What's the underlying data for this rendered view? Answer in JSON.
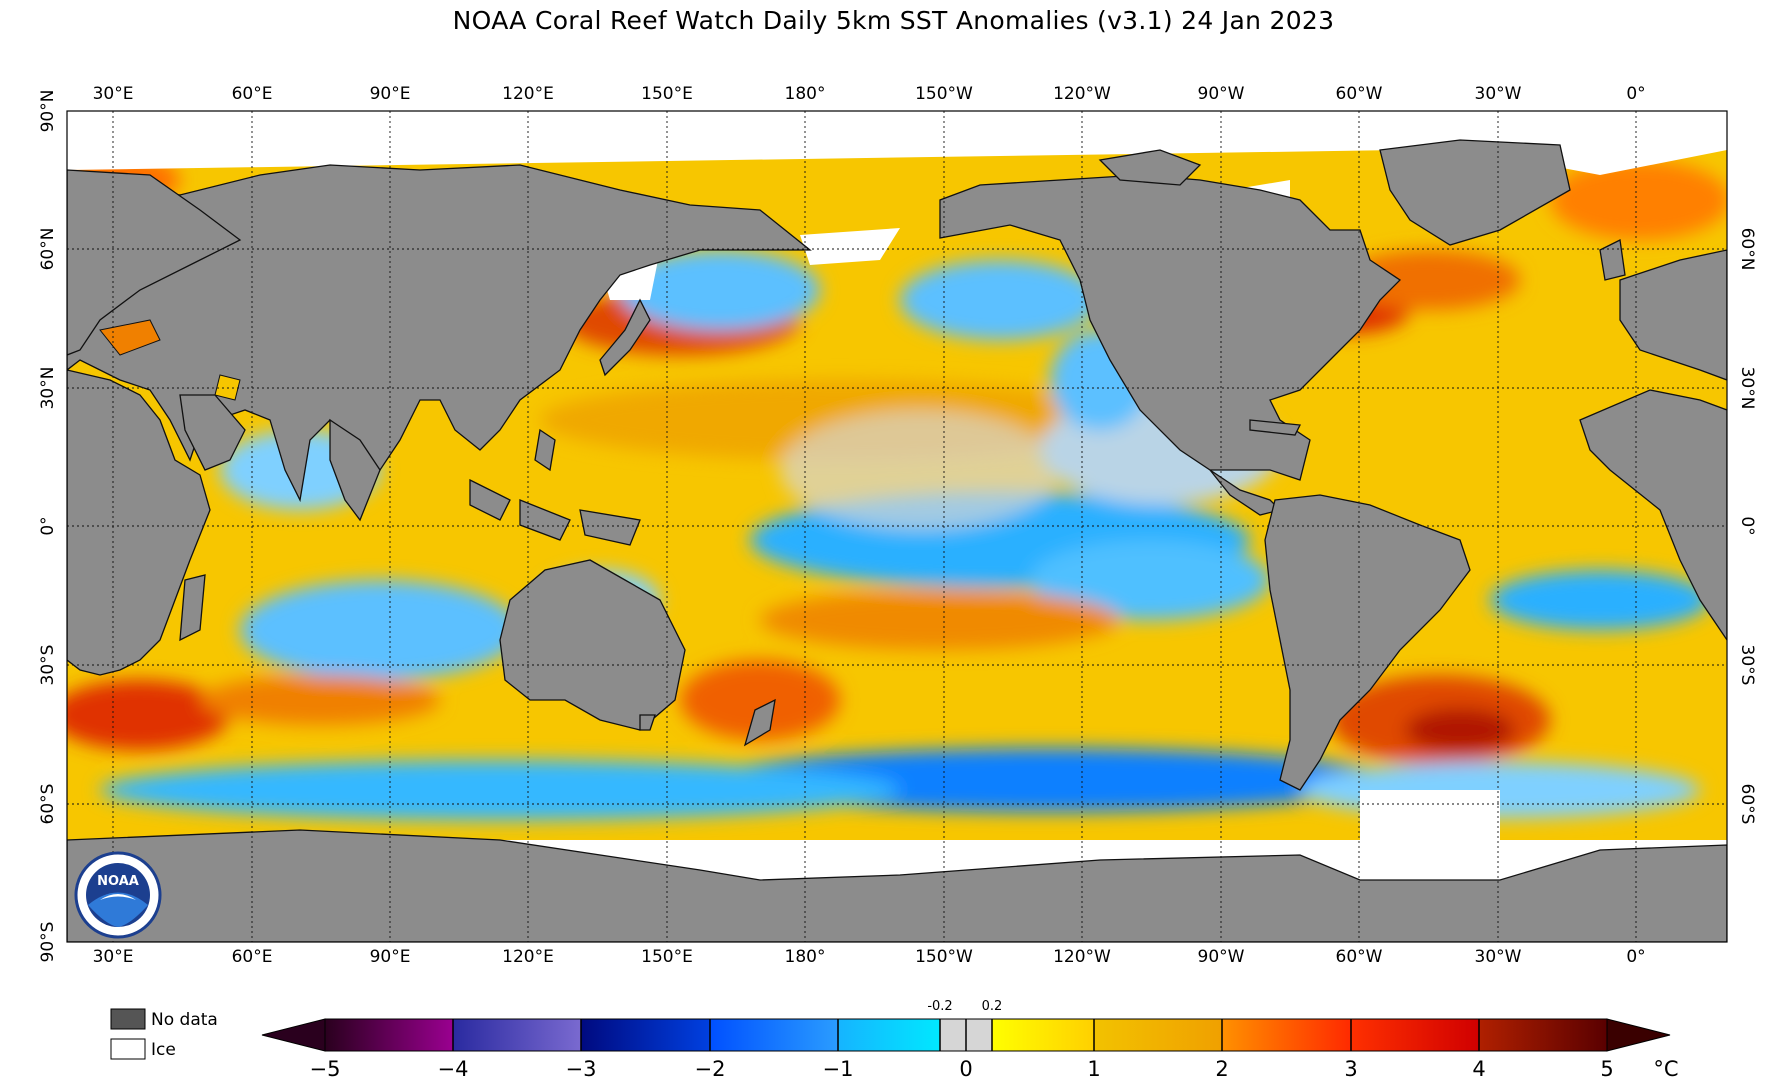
{
  "title": "NOAA Coral Reef Watch Daily 5km SST Anomalies  (v3.1)   24 Jan 2023",
  "lon_labels": [
    "30°E",
    "60°E",
    "90°E",
    "120°E",
    "150°E",
    "180°",
    "150°W",
    "120°W",
    "90°W",
    "60°W",
    "30°W",
    "0°"
  ],
  "lat_labels_left": [
    "90°N",
    "60°N",
    "30°N",
    "0°",
    "30°S",
    "60°S",
    "90°S"
  ],
  "lat_labels_right": [
    "60°N",
    "30°N",
    "0°",
    "30°S",
    "60°S"
  ],
  "legend": {
    "no_data": "No data",
    "ice": "Ice"
  },
  "colorbar": {
    "ticks": [
      "−5",
      "−4",
      "−3",
      "−2",
      "−1",
      "0",
      "1",
      "2",
      "3",
      "4",
      "5"
    ],
    "small_ticks": [
      "-0.2",
      "0.2"
    ],
    "unit": "°C",
    "range": [
      -5,
      5
    ]
  },
  "logo_text": "NOAA",
  "colors": {
    "land": "#8c8c8c",
    "ice": "#ffffff",
    "no_data": "#555555",
    "warm": "#f5c000",
    "cool": "#29b6f6"
  }
}
